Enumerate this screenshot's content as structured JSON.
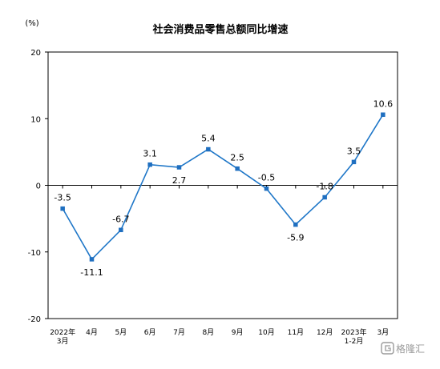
{
  "chart_data": {
    "type": "line",
    "title": "社会消费品零售总额同比增速",
    "unit_label": "(%)",
    "categories": [
      [
        "2022年",
        "3月"
      ],
      [
        "4月"
      ],
      [
        "5月"
      ],
      [
        "6月"
      ],
      [
        "7月"
      ],
      [
        "8月"
      ],
      [
        "9月"
      ],
      [
        "10月"
      ],
      [
        "11月"
      ],
      [
        "12月"
      ],
      [
        "2023年",
        "1-2月"
      ],
      [
        "3月"
      ]
    ],
    "values": [
      -3.5,
      -11.1,
      -6.7,
      3.1,
      2.7,
      5.4,
      2.5,
      -0.5,
      -5.9,
      -1.8,
      3.5,
      10.6
    ],
    "data_labels": [
      "-3.5",
      "-11.1",
      "-6.7",
      "3.1",
      "2.7",
      "5.4",
      "2.5",
      "-0.5",
      "-5.9",
      "-1.8",
      "3.5",
      "10.6"
    ],
    "ylim": [
      -20,
      20
    ],
    "yticks": [
      20,
      10,
      0,
      -10,
      -20
    ],
    "grid": false,
    "legend": "none",
    "line_color": "#1f77c8",
    "marker_color": "#1f6fc0",
    "axis_color": "#000000"
  },
  "watermark": {
    "text": "格隆汇",
    "icon": "g-logo-icon"
  }
}
